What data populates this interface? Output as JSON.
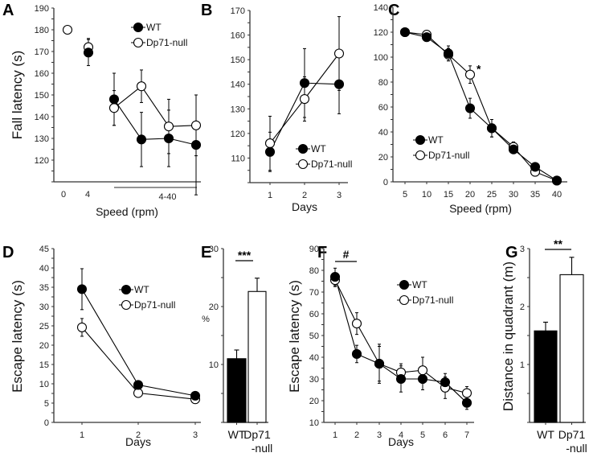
{
  "colors": {
    "wt": "#000000",
    "dp71": "#ffffff",
    "axis": "#333333"
  },
  "legend": {
    "wt": "WT",
    "dp71": "Dp71-null"
  },
  "chart_data": [
    {
      "panel": "A",
      "type": "line",
      "ylabel": "Fall latency (s)",
      "xlabel": "Speed (rpm)",
      "ylim": [
        110,
        190
      ],
      "yticks": [
        120,
        130,
        140,
        150,
        160,
        170,
        180,
        190
      ],
      "xticks": [
        "0",
        "4"
      ],
      "bracket_label": "4-40",
      "series": [
        {
          "name": "WT",
          "points": [
            [
              1,
              169.5,
              6
            ],
            [
              2,
              148,
              12
            ],
            [
              3,
              129.5,
              12.5
            ],
            [
              4,
              130,
              13
            ],
            [
              5,
              127,
              23
            ]
          ],
          "connect_from": 2
        },
        {
          "name": "Dp71-null",
          "points": [
            [
              0,
              180,
              0
            ],
            [
              1,
              172,
              4
            ],
            [
              2,
              144,
              8
            ],
            [
              3,
              154,
              7.5
            ],
            [
              4,
              135.5,
              12.5
            ],
            [
              5,
              136,
              14
            ]
          ],
          "connect_from": 2
        }
      ]
    },
    {
      "panel": "B",
      "type": "line",
      "ylabel": "",
      "xlabel": "Days",
      "ylim": [
        100,
        170
      ],
      "yticks": [
        110,
        120,
        130,
        140,
        150,
        160,
        170
      ],
      "xticks": [
        "1",
        "2",
        "3"
      ],
      "series": [
        {
          "name": "WT",
          "points": [
            [
              0,
              112.5,
              8
            ],
            [
              1,
              140.5,
              14
            ],
            [
              2,
              140,
              12
            ]
          ]
        },
        {
          "name": "Dp71-null",
          "points": [
            [
              0,
              116,
              11
            ],
            [
              1,
              134,
              9
            ],
            [
              2,
              152.5,
              15
            ]
          ]
        }
      ]
    },
    {
      "panel": "C",
      "type": "line",
      "ylabel": "",
      "xlabel": "Speed (rpm)",
      "ylim": [
        0,
        140
      ],
      "yticks": [
        0,
        20,
        40,
        60,
        80,
        100,
        120,
        140
      ],
      "xticks": [
        "5",
        "10",
        "15",
        "20",
        "25",
        "30",
        "35",
        "40"
      ],
      "annotation": "*",
      "series": [
        {
          "name": "WT",
          "points": [
            [
              0,
              120,
              1
            ],
            [
              1,
              116,
              2
            ],
            [
              2,
              103,
              6
            ],
            [
              3,
              59,
              8
            ],
            [
              4,
              43,
              7
            ],
            [
              5,
              26,
              3
            ],
            [
              6,
              12,
              2
            ],
            [
              7,
              1,
              0
            ]
          ]
        },
        {
          "name": "Dp71-null",
          "points": [
            [
              0,
              120,
              1
            ],
            [
              1,
              118,
              2
            ],
            [
              2,
              102,
              5
            ],
            [
              3,
              86,
              7
            ],
            [
              4,
              43,
              7
            ],
            [
              5,
              28,
              4
            ],
            [
              6,
              8,
              2
            ],
            [
              7,
              1,
              0
            ]
          ]
        }
      ]
    },
    {
      "panel": "D",
      "type": "line",
      "ylabel": "Escape latency (s)",
      "xlabel": "Days",
      "ylim": [
        0,
        45
      ],
      "yticks": [
        0,
        5,
        10,
        15,
        20,
        25,
        30,
        35,
        40,
        45
      ],
      "xticks": [
        "1",
        "2",
        "3"
      ],
      "series": [
        {
          "name": "WT",
          "points": [
            [
              0,
              34.5,
              5.3
            ],
            [
              1,
              9.7,
              0
            ],
            [
              2,
              6.9,
              0
            ]
          ]
        },
        {
          "name": "Dp71-null",
          "points": [
            [
              0,
              24.6,
              2.3
            ],
            [
              1,
              7.6,
              0
            ],
            [
              2,
              6.0,
              0
            ]
          ]
        }
      ]
    },
    {
      "panel": "E",
      "type": "bar",
      "ylabel": "%",
      "ylim": [
        0,
        30
      ],
      "yticks": [
        10,
        20,
        30
      ],
      "categories": [
        "WT",
        "Dp71-null"
      ],
      "category_labels": [
        [
          "WT"
        ],
        [
          "Dp71",
          "-null"
        ]
      ],
      "values": [
        11,
        22.6
      ],
      "errors": [
        1.5,
        2.3
      ],
      "significance": "***"
    },
    {
      "panel": "F",
      "type": "line",
      "ylabel": "Escape latency (s)",
      "xlabel": "Days",
      "ylim": [
        10,
        90
      ],
      "yticks": [
        10,
        20,
        30,
        40,
        50,
        60,
        70,
        80,
        90
      ],
      "xticks": [
        "1",
        "2",
        "3",
        "4",
        "5",
        "6",
        "7"
      ],
      "significance": "#",
      "series": [
        {
          "name": "WT",
          "points": [
            [
              0,
              77,
              4
            ],
            [
              1,
              41.5,
              4
            ],
            [
              2,
              37,
              8
            ],
            [
              3,
              30,
              6
            ],
            [
              4,
              30,
              5
            ],
            [
              5,
              28.5,
              4
            ],
            [
              6,
              19,
              3
            ]
          ]
        },
        {
          "name": "Dp71-null",
          "points": [
            [
              0,
              75.5,
              3
            ],
            [
              1,
              55.5,
              5
            ],
            [
              2,
              37,
              9
            ],
            [
              3,
              33,
              4
            ],
            [
              4,
              34,
              6
            ],
            [
              5,
              26,
              5
            ],
            [
              6,
              23.5,
              3
            ]
          ]
        }
      ]
    },
    {
      "panel": "G",
      "type": "bar",
      "ylabel": "Distance in quadrant (m)",
      "ylim": [
        0,
        3
      ],
      "yticks": [
        1,
        2,
        3
      ],
      "categories": [
        "WT",
        "Dp71-null"
      ],
      "category_labels": [
        [
          "WT"
        ],
        [
          "Dp71",
          "-null"
        ]
      ],
      "values": [
        1.58,
        2.55
      ],
      "errors": [
        0.15,
        0.3
      ],
      "significance": "**"
    }
  ]
}
